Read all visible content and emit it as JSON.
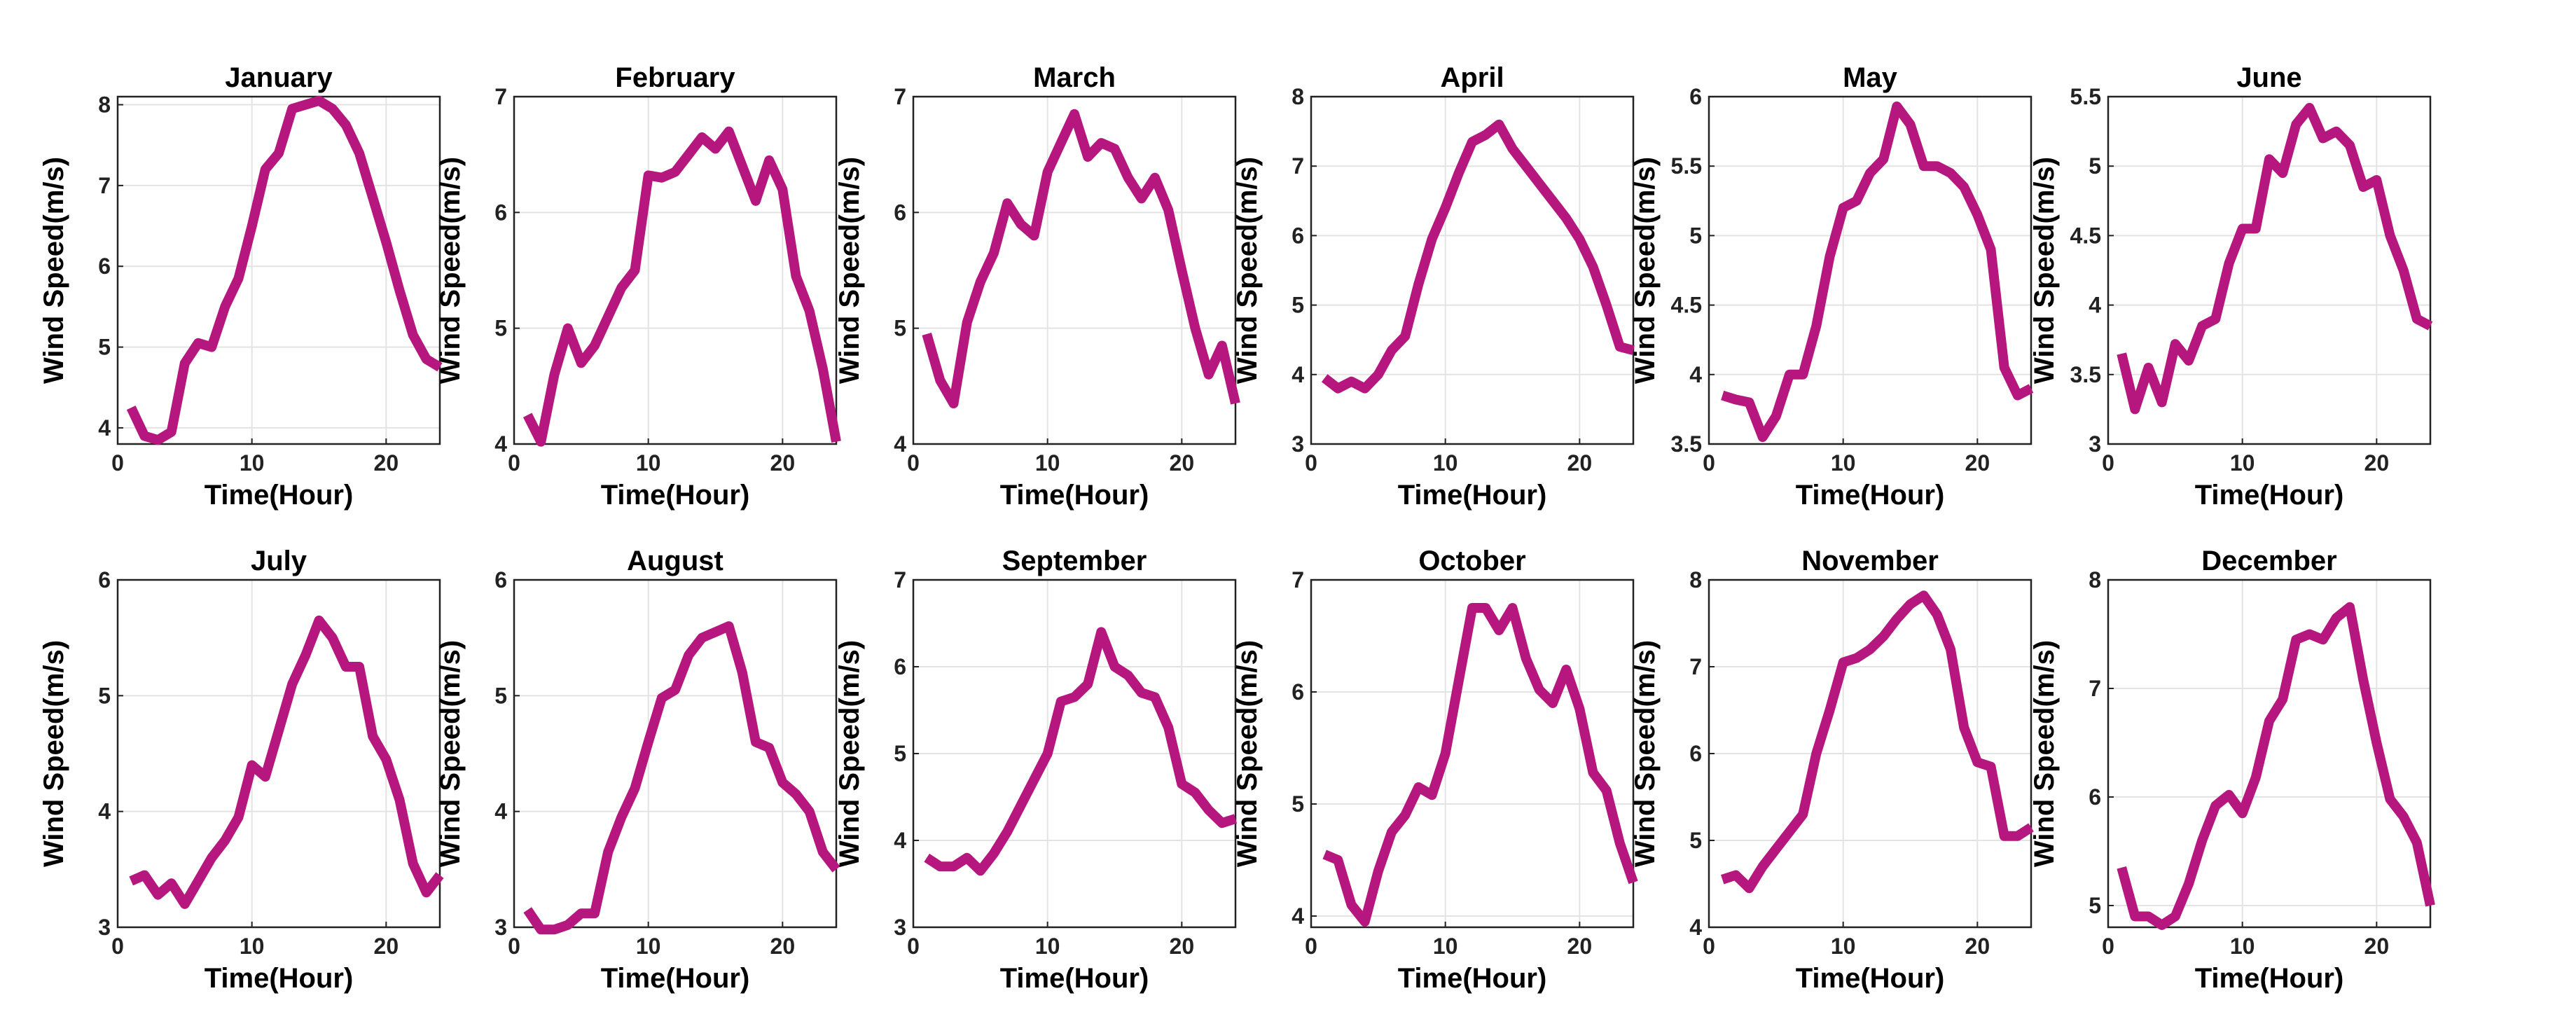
{
  "figure": {
    "line_color": "#B5177E",
    "grid": true
  },
  "chart_data": [
    {
      "type": "line",
      "title": "January",
      "xlabel": "Time(Hour)",
      "ylabel": "Wind Speed(m/s)",
      "xlim": [
        0,
        24
      ],
      "ylim": [
        3.8,
        8.1
      ],
      "xticks": [
        0,
        10,
        20
      ],
      "yticks": [
        4,
        5,
        6,
        7,
        8
      ],
      "series": [
        {
          "name": "January",
          "x": [
            1,
            2,
            3,
            4,
            5,
            6,
            7,
            8,
            9,
            10,
            11,
            12,
            13,
            14,
            15,
            16,
            17,
            18,
            19,
            20,
            21,
            22,
            23,
            24
          ],
          "values": [
            4.25,
            3.9,
            3.85,
            3.95,
            4.8,
            5.05,
            5.0,
            5.5,
            5.85,
            6.5,
            7.2,
            7.4,
            7.95,
            8.0,
            8.05,
            7.95,
            7.75,
            7.4,
            6.85,
            6.3,
            5.7,
            5.15,
            4.85,
            4.75
          ]
        }
      ]
    },
    {
      "type": "line",
      "title": "February",
      "xlabel": "Time(Hour)",
      "ylabel": "Wind Speed(m/s)",
      "xlim": [
        0,
        24
      ],
      "ylim": [
        4,
        7
      ],
      "xticks": [
        0,
        10,
        20
      ],
      "yticks": [
        4,
        5,
        6,
        7
      ],
      "series": [
        {
          "name": "February",
          "x": [
            1,
            2,
            3,
            4,
            5,
            6,
            7,
            8,
            9,
            10,
            11,
            12,
            13,
            14,
            15,
            16,
            17,
            18,
            19,
            20,
            21,
            22,
            23,
            24
          ],
          "values": [
            4.25,
            4.02,
            4.6,
            5.0,
            4.7,
            4.85,
            5.1,
            5.35,
            5.5,
            6.32,
            6.3,
            6.35,
            6.5,
            6.65,
            6.55,
            6.7,
            6.4,
            6.1,
            6.45,
            6.2,
            5.45,
            5.15,
            4.65,
            4.02
          ]
        }
      ]
    },
    {
      "type": "line",
      "title": "March",
      "xlabel": "Time(Hour)",
      "ylabel": "Wind Speed(m/s)",
      "xlim": [
        0,
        24
      ],
      "ylim": [
        4,
        7
      ],
      "xticks": [
        0,
        10,
        20
      ],
      "yticks": [
        4,
        5,
        6,
        7
      ],
      "series": [
        {
          "name": "March",
          "x": [
            1,
            2,
            3,
            4,
            5,
            6,
            7,
            8,
            9,
            10,
            11,
            12,
            13,
            14,
            15,
            16,
            17,
            18,
            19,
            20,
            21,
            22,
            23,
            24
          ],
          "values": [
            4.95,
            4.55,
            4.35,
            5.05,
            5.4,
            5.65,
            6.08,
            5.9,
            5.8,
            6.35,
            6.6,
            6.85,
            6.48,
            6.6,
            6.55,
            6.3,
            6.12,
            6.3,
            6.02,
            5.5,
            5.0,
            4.6,
            4.85,
            4.35
          ]
        }
      ]
    },
    {
      "type": "line",
      "title": "April",
      "xlabel": "Time(Hour)",
      "ylabel": "Wind Speed(m/s)",
      "xlim": [
        0,
        24
      ],
      "ylim": [
        3,
        8
      ],
      "xticks": [
        0,
        10,
        20
      ],
      "yticks": [
        3,
        4,
        5,
        6,
        7,
        8
      ],
      "series": [
        {
          "name": "April",
          "x": [
            1,
            2,
            3,
            4,
            5,
            6,
            7,
            8,
            9,
            10,
            11,
            12,
            13,
            14,
            15,
            16,
            17,
            18,
            19,
            20,
            21,
            22,
            23,
            24
          ],
          "values": [
            3.95,
            3.8,
            3.9,
            3.8,
            4.0,
            4.35,
            4.55,
            5.3,
            5.95,
            6.4,
            6.9,
            7.35,
            7.45,
            7.6,
            7.25,
            7.0,
            6.75,
            6.5,
            6.25,
            5.95,
            5.55,
            5.0,
            4.4,
            4.35
          ]
        }
      ]
    },
    {
      "type": "line",
      "title": "May",
      "xlabel": "Time(Hour)",
      "ylabel": "Wind Speed(m/s)",
      "xlim": [
        0,
        24
      ],
      "ylim": [
        3.5,
        6
      ],
      "xticks": [
        0,
        10,
        20
      ],
      "yticks": [
        3.5,
        4,
        4.5,
        5,
        5.5,
        6
      ],
      "series": [
        {
          "name": "May",
          "x": [
            1,
            2,
            3,
            4,
            5,
            6,
            7,
            8,
            9,
            10,
            11,
            12,
            13,
            14,
            15,
            16,
            17,
            18,
            19,
            20,
            21,
            22,
            23,
            24
          ],
          "values": [
            3.85,
            3.82,
            3.8,
            3.55,
            3.7,
            4.0,
            4.0,
            4.35,
            4.85,
            5.2,
            5.25,
            5.45,
            5.55,
            5.93,
            5.8,
            5.5,
            5.5,
            5.45,
            5.35,
            5.15,
            4.9,
            4.05,
            3.85,
            3.9
          ]
        }
      ]
    },
    {
      "type": "line",
      "title": "June",
      "xlabel": "Time(Hour)",
      "ylabel": "Wind Speed(m/s)",
      "xlim": [
        0,
        24
      ],
      "ylim": [
        3,
        5.5
      ],
      "xticks": [
        0,
        10,
        20
      ],
      "yticks": [
        3,
        3.5,
        4,
        4.5,
        5,
        5.5
      ],
      "series": [
        {
          "name": "June",
          "x": [
            1,
            2,
            3,
            4,
            5,
            6,
            7,
            8,
            9,
            10,
            11,
            12,
            13,
            14,
            15,
            16,
            17,
            18,
            19,
            20,
            21,
            22,
            23,
            24
          ],
          "values": [
            3.65,
            3.25,
            3.55,
            3.3,
            3.72,
            3.6,
            3.85,
            3.9,
            4.3,
            4.55,
            4.55,
            5.05,
            4.95,
            5.3,
            5.42,
            5.2,
            5.25,
            5.15,
            4.85,
            4.9,
            4.5,
            4.25,
            3.9,
            3.85
          ]
        }
      ]
    },
    {
      "type": "line",
      "title": "July",
      "xlabel": "Time(Hour)",
      "ylabel": "Wind Speed(m/s)",
      "xlim": [
        0,
        24
      ],
      "ylim": [
        3,
        6
      ],
      "xticks": [
        0,
        10,
        20
      ],
      "yticks": [
        3,
        4,
        5,
        6
      ],
      "series": [
        {
          "name": "July",
          "x": [
            1,
            2,
            3,
            4,
            5,
            6,
            7,
            8,
            9,
            10,
            11,
            12,
            13,
            14,
            15,
            16,
            17,
            18,
            19,
            20,
            21,
            22,
            23,
            24
          ],
          "values": [
            3.4,
            3.45,
            3.28,
            3.38,
            3.2,
            3.4,
            3.6,
            3.75,
            3.95,
            4.4,
            4.3,
            4.7,
            5.1,
            5.35,
            5.65,
            5.5,
            5.25,
            5.25,
            4.65,
            4.45,
            4.1,
            3.55,
            3.3,
            3.45
          ]
        }
      ]
    },
    {
      "type": "line",
      "title": "August",
      "xlabel": "Time(Hour)",
      "ylabel": "Wind Speed(m/s)",
      "xlim": [
        0,
        24
      ],
      "ylim": [
        3,
        6
      ],
      "xticks": [
        0,
        10,
        20
      ],
      "yticks": [
        3,
        4,
        5,
        6
      ],
      "series": [
        {
          "name": "August",
          "x": [
            1,
            2,
            3,
            4,
            5,
            6,
            7,
            8,
            9,
            10,
            11,
            12,
            13,
            14,
            15,
            16,
            17,
            18,
            19,
            20,
            21,
            22,
            23,
            24
          ],
          "values": [
            3.15,
            2.98,
            2.98,
            3.02,
            3.12,
            3.12,
            3.65,
            3.95,
            4.2,
            4.6,
            4.98,
            5.05,
            5.35,
            5.5,
            5.55,
            5.6,
            5.2,
            4.6,
            4.55,
            4.25,
            4.15,
            4.0,
            3.65,
            3.5
          ]
        }
      ]
    },
    {
      "type": "line",
      "title": "September",
      "xlabel": "Time(Hour)",
      "ylabel": "Wind Speed(m/s)",
      "xlim": [
        0,
        24
      ],
      "ylim": [
        3,
        7
      ],
      "xticks": [
        0,
        10,
        20
      ],
      "yticks": [
        3,
        4,
        5,
        6,
        7
      ],
      "series": [
        {
          "name": "September",
          "x": [
            1,
            2,
            3,
            4,
            5,
            6,
            7,
            8,
            9,
            10,
            11,
            12,
            13,
            14,
            15,
            16,
            17,
            18,
            19,
            20,
            21,
            22,
            23,
            24
          ],
          "values": [
            3.8,
            3.7,
            3.7,
            3.8,
            3.65,
            3.85,
            4.1,
            4.4,
            4.7,
            5.0,
            5.6,
            5.65,
            5.8,
            6.4,
            6.0,
            5.9,
            5.7,
            5.65,
            5.3,
            4.65,
            4.55,
            4.35,
            4.2,
            4.25
          ]
        }
      ]
    },
    {
      "type": "line",
      "title": "October",
      "xlabel": "Time(Hour)",
      "ylabel": "Wind Speed(m/s)",
      "xlim": [
        0,
        24
      ],
      "ylim": [
        3.9,
        7
      ],
      "xticks": [
        0,
        10,
        20
      ],
      "yticks": [
        4,
        5,
        6,
        7
      ],
      "series": [
        {
          "name": "October",
          "x": [
            1,
            2,
            3,
            4,
            5,
            6,
            7,
            8,
            9,
            10,
            11,
            12,
            13,
            14,
            15,
            16,
            17,
            18,
            19,
            20,
            21,
            22,
            23,
            24
          ],
          "values": [
            4.55,
            4.5,
            4.1,
            3.95,
            4.4,
            4.75,
            4.9,
            5.15,
            5.08,
            5.45,
            6.1,
            6.75,
            6.75,
            6.55,
            6.75,
            6.3,
            6.02,
            5.9,
            6.2,
            5.85,
            5.28,
            5.12,
            4.65,
            4.3
          ]
        }
      ]
    },
    {
      "type": "line",
      "title": "November",
      "xlabel": "Time(Hour)",
      "ylabel": "Wind Speed(m/s)",
      "xlim": [
        0,
        24
      ],
      "ylim": [
        4,
        8
      ],
      "xticks": [
        0,
        10,
        20
      ],
      "yticks": [
        4,
        5,
        6,
        7,
        8
      ],
      "series": [
        {
          "name": "November",
          "x": [
            1,
            2,
            3,
            4,
            5,
            6,
            7,
            8,
            9,
            10,
            11,
            12,
            13,
            14,
            15,
            16,
            17,
            18,
            19,
            20,
            21,
            22,
            23,
            24
          ],
          "values": [
            4.55,
            4.6,
            4.45,
            4.7,
            4.9,
            5.1,
            5.3,
            6.0,
            6.5,
            7.05,
            7.1,
            7.2,
            7.35,
            7.55,
            7.72,
            7.82,
            7.6,
            7.2,
            6.3,
            5.9,
            5.85,
            5.05,
            5.05,
            5.15
          ]
        }
      ]
    },
    {
      "type": "line",
      "title": "December",
      "xlabel": "Time(Hour)",
      "ylabel": "Wind Speed(m/s)",
      "xlim": [
        0,
        24
      ],
      "ylim": [
        4.8,
        8
      ],
      "xticks": [
        0,
        10,
        20
      ],
      "yticks": [
        5,
        6,
        7,
        8
      ],
      "series": [
        {
          "name": "December",
          "x": [
            1,
            2,
            3,
            4,
            5,
            6,
            7,
            8,
            9,
            10,
            11,
            12,
            13,
            14,
            15,
            16,
            17,
            18,
            19,
            20,
            21,
            22,
            23,
            24
          ],
          "values": [
            5.35,
            4.9,
            4.9,
            4.82,
            4.9,
            5.2,
            5.6,
            5.92,
            6.02,
            5.85,
            6.18,
            6.7,
            6.9,
            7.45,
            7.5,
            7.45,
            7.65,
            7.75,
            7.08,
            6.5,
            5.98,
            5.82,
            5.58,
            5.0
          ]
        }
      ]
    }
  ]
}
